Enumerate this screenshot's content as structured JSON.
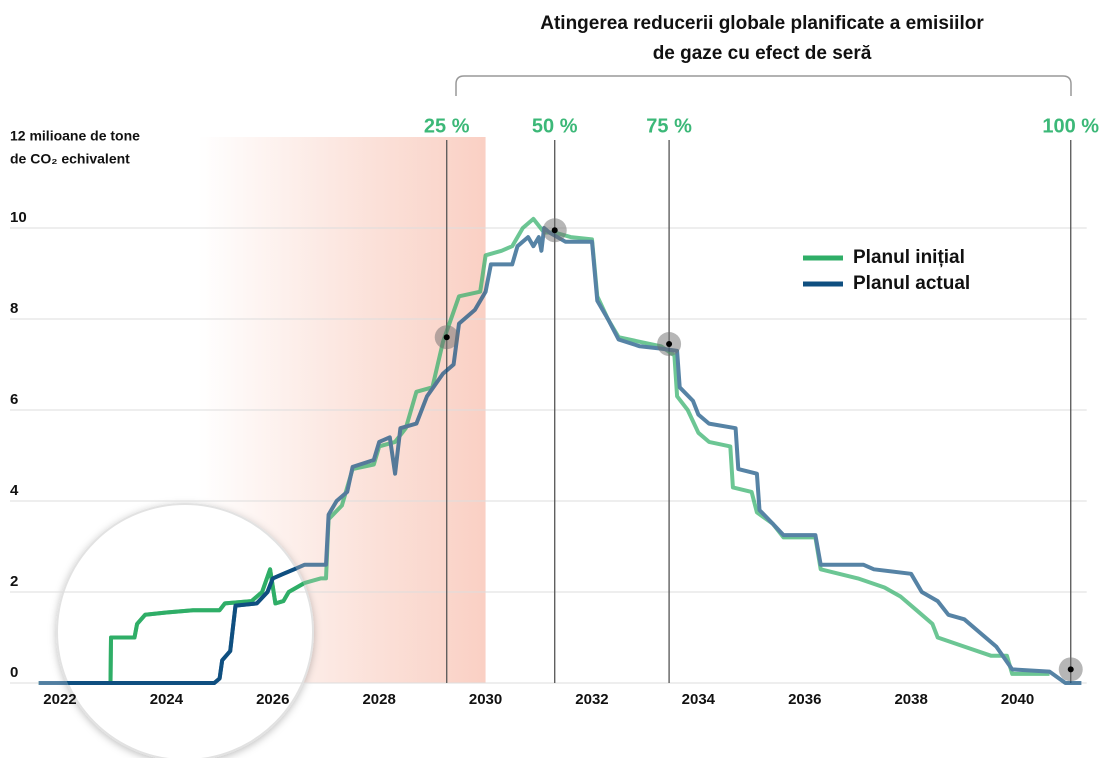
{
  "chart_data": {
    "type": "line",
    "title_lines": [
      "Atingerea reducerii globale planificate a emisiilor",
      "de gaze cu efect de seră"
    ],
    "y_label": "de CO₂ echivalent",
    "xlim": [
      2021.6,
      2041.3
    ],
    "xticks": [
      2022,
      2024,
      2026,
      2028,
      2030,
      2032,
      2034,
      2036,
      2038,
      2040
    ],
    "ylim": [
      0,
      12
    ],
    "yticks": [
      0,
      2,
      4,
      6,
      8,
      10,
      {
        "value": 12,
        "label": "12 milioane de tone"
      }
    ],
    "grid": true,
    "shaded_xrange": [
      2024.6,
      2030
    ],
    "milestones": [
      {
        "label": "25 %",
        "x": 2029.27,
        "y": 7.6
      },
      {
        "label": "50 %",
        "x": 2031.3,
        "y": 9.95
      },
      {
        "label": "75 %",
        "x": 2033.45,
        "y": 7.45
      },
      {
        "label": "100 %",
        "x": 2041.0,
        "y": 0.3
      }
    ],
    "series": [
      {
        "name": "Planul inițial",
        "color": "#2fae67",
        "x": [
          2021.6,
          2022.95,
          2022.96,
          2023.4,
          2023.45,
          2023.6,
          2024.0,
          2024.5,
          2025.0,
          2025.1,
          2025.6,
          2025.8,
          2025.95,
          2026.05,
          2026.2,
          2026.3,
          2026.6,
          2026.9,
          2027.0,
          2027.05,
          2027.3,
          2027.5,
          2027.9,
          2028.0,
          2028.3,
          2028.5,
          2028.7,
          2029.0,
          2029.2,
          2029.5,
          2029.9,
          2030.0,
          2030.3,
          2030.5,
          2030.7,
          2030.9,
          2031.1,
          2031.3,
          2031.6,
          2032.0,
          2032.1,
          2032.3,
          2032.5,
          2032.9,
          2033.3,
          2033.55,
          2033.6,
          2033.8,
          2034.0,
          2034.2,
          2034.6,
          2034.65,
          2035.0,
          2035.1,
          2035.4,
          2035.6,
          2036.2,
          2036.3,
          2037.0,
          2037.5,
          2037.8,
          2038.1,
          2038.4,
          2038.5,
          2039.0,
          2039.5,
          2039.8,
          2039.9,
          2040.6
        ],
        "values": [
          0,
          0,
          1.0,
          1.0,
          1.3,
          1.5,
          1.55,
          1.6,
          1.6,
          1.75,
          1.8,
          2.0,
          2.5,
          1.75,
          1.8,
          2.0,
          2.2,
          2.3,
          2.3,
          3.6,
          3.9,
          4.7,
          4.8,
          5.2,
          5.3,
          5.6,
          6.4,
          6.5,
          7.5,
          8.5,
          8.6,
          9.4,
          9.5,
          9.6,
          10.0,
          10.2,
          9.9,
          9.9,
          9.8,
          9.75,
          8.5,
          8.0,
          7.6,
          7.5,
          7.4,
          7.2,
          6.3,
          6.0,
          5.5,
          5.3,
          5.2,
          4.3,
          4.2,
          3.75,
          3.5,
          3.2,
          3.2,
          2.5,
          2.3,
          2.1,
          1.9,
          1.6,
          1.3,
          1.0,
          0.8,
          0.6,
          0.6,
          0.2,
          0.2
        ]
      },
      {
        "name": "Planul actual",
        "color": "#0f4f80",
        "x": [
          2021.6,
          2024.9,
          2025.0,
          2025.05,
          2025.2,
          2025.3,
          2025.7,
          2025.9,
          2026.0,
          2026.2,
          2026.4,
          2026.6,
          2027.0,
          2027.05,
          2027.2,
          2027.4,
          2027.5,
          2027.9,
          2028.0,
          2028.2,
          2028.3,
          2028.4,
          2028.7,
          2028.9,
          2029.2,
          2029.4,
          2029.5,
          2029.8,
          2030.0,
          2030.1,
          2030.5,
          2030.6,
          2030.8,
          2030.9,
          2031.0,
          2031.05,
          2031.1,
          2031.2,
          2031.5,
          2032.0,
          2032.1,
          2032.3,
          2032.5,
          2032.9,
          2033.3,
          2033.6,
          2033.65,
          2033.9,
          2034.0,
          2034.2,
          2034.7,
          2034.75,
          2035.1,
          2035.15,
          2035.4,
          2035.6,
          2036.2,
          2036.3,
          2037.1,
          2037.3,
          2038.0,
          2038.2,
          2038.5,
          2038.7,
          2039.0,
          2039.3,
          2039.6,
          2039.9,
          2040.6,
          2040.9,
          2041.2
        ],
        "values": [
          0,
          0,
          0.1,
          0.5,
          0.7,
          1.7,
          1.75,
          2.0,
          2.3,
          2.4,
          2.5,
          2.6,
          2.6,
          3.7,
          4.0,
          4.2,
          4.75,
          4.9,
          5.3,
          5.4,
          4.6,
          5.6,
          5.7,
          6.3,
          6.8,
          7.0,
          7.9,
          8.2,
          8.6,
          9.2,
          9.2,
          9.6,
          9.8,
          9.6,
          9.8,
          9.5,
          10.0,
          9.9,
          9.7,
          9.7,
          8.4,
          8.0,
          7.55,
          7.4,
          7.35,
          7.3,
          6.5,
          6.2,
          5.9,
          5.7,
          5.6,
          4.7,
          4.6,
          3.8,
          3.5,
          3.25,
          3.25,
          2.6,
          2.6,
          2.5,
          2.4,
          2.0,
          1.8,
          1.5,
          1.4,
          1.1,
          0.8,
          0.3,
          0.25,
          0.0,
          0.0
        ]
      }
    ]
  }
}
